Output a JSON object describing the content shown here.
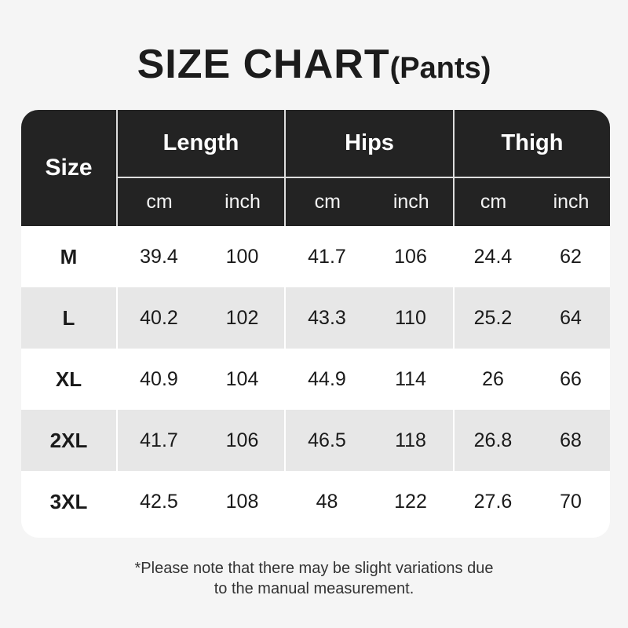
{
  "title": {
    "main": "SIZE CHART",
    "suffix": "(Pants)"
  },
  "table": {
    "corner_label": "Size",
    "groups": [
      {
        "label": "Length"
      },
      {
        "label": "Hips"
      },
      {
        "label": "Thigh"
      }
    ],
    "unit_labels": [
      "cm",
      "inch"
    ],
    "rows": [
      {
        "size": "M",
        "values": [
          "39.4",
          "100",
          "41.7",
          "106",
          "24.4",
          "62"
        ]
      },
      {
        "size": "L",
        "values": [
          "40.2",
          "102",
          "43.3",
          "110",
          "25.2",
          "64"
        ]
      },
      {
        "size": "XL",
        "values": [
          "40.9",
          "104",
          "44.9",
          "114",
          "26",
          "66"
        ]
      },
      {
        "size": "2XL",
        "values": [
          "41.7",
          "106",
          "46.5",
          "118",
          "26.8",
          "68"
        ]
      },
      {
        "size": "3XL",
        "values": [
          "42.5",
          "108",
          "48",
          "122",
          "27.6",
          "70"
        ]
      }
    ]
  },
  "footer": {
    "lines": [
      "*Please note that there may be slight variations due",
      "to the manual measurement."
    ]
  },
  "colors": {
    "page_bg": "#f5f5f5",
    "card_bg": "#ffffff",
    "header_bg": "#232323",
    "stripe": "#e7e7e7",
    "text": "#1a1a1a",
    "divider": "rgba(255,255,255,0.85)"
  },
  "chart_data": {
    "type": "table",
    "title": "SIZE CHART(Pants)",
    "column_groups": [
      "Length",
      "Hips",
      "Thigh"
    ],
    "columns": [
      "Size",
      "Length cm",
      "Length inch",
      "Hips cm",
      "Hips inch",
      "Thigh cm",
      "Thigh inch"
    ],
    "rows": [
      [
        "M",
        39.4,
        100,
        41.7,
        106,
        24.4,
        62
      ],
      [
        "L",
        40.2,
        102,
        43.3,
        110,
        25.2,
        64
      ],
      [
        "XL",
        40.9,
        104,
        44.9,
        114,
        26,
        66
      ],
      [
        "2XL",
        41.7,
        106,
        46.5,
        118,
        26.8,
        68
      ],
      [
        "3XL",
        42.5,
        108,
        48,
        122,
        27.6,
        70
      ]
    ],
    "note": "*Please note that there may be slight variations due to the manual measurement."
  }
}
